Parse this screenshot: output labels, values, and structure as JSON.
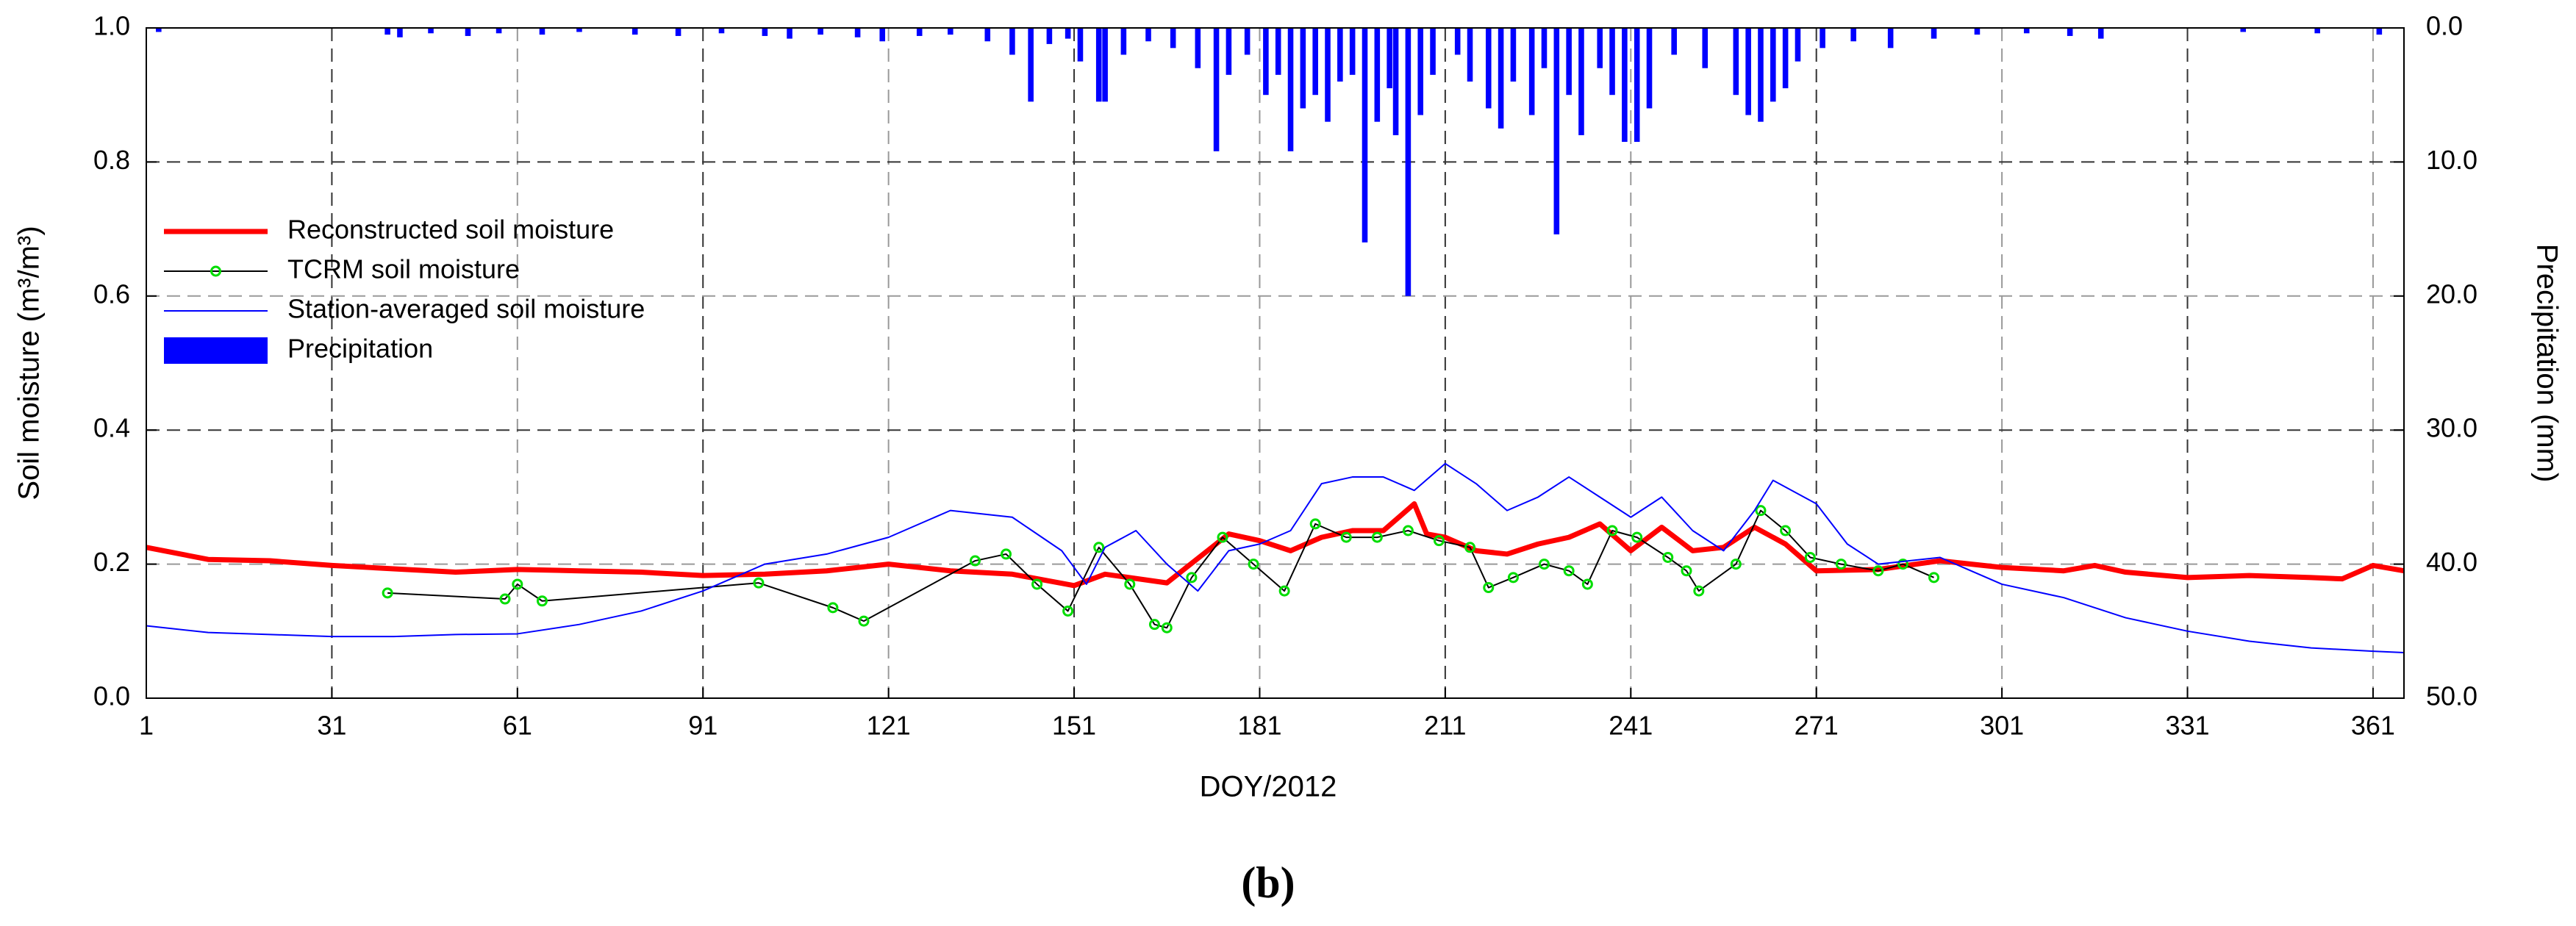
{
  "chart_data": {
    "type": "combo",
    "xlabel": "DOY/2012",
    "ylabel": "Soil moisture (m³/m³)",
    "y2label": "Precipitation (mm)",
    "caption": "(b)",
    "xlim": [
      1,
      366
    ],
    "xticks": [
      1,
      31,
      61,
      91,
      121,
      151,
      181,
      211,
      241,
      271,
      301,
      331,
      361
    ],
    "ylim": [
      0,
      1
    ],
    "yticks": [
      {
        "value": 0,
        "label": "0.0"
      },
      {
        "value": 0.2,
        "label": "0.2"
      },
      {
        "value": 0.4,
        "label": "0.4"
      },
      {
        "value": 0.6,
        "label": "0.6"
      },
      {
        "value": 0.8,
        "label": "0.8"
      },
      {
        "value": 1,
        "label": "1.0"
      }
    ],
    "y2lim": [
      50,
      0
    ],
    "y2ticks": [
      {
        "value": 0,
        "label": "0.0"
      },
      {
        "value": 10,
        "label": "10.0"
      },
      {
        "value": 20,
        "label": "20.0"
      },
      {
        "value": 30,
        "label": "30.0"
      },
      {
        "value": 40,
        "label": "40.0"
      },
      {
        "value": 50,
        "label": "50.0"
      }
    ],
    "grid": true,
    "legend": "upper left",
    "series": [
      {
        "name": "Reconstructed soil moisture",
        "type": "line",
        "color": "#ff0000",
        "width": 7,
        "x": [
          1,
          11,
          21,
          31,
          41,
          51,
          61,
          71,
          81,
          91,
          101,
          111,
          121,
          131,
          141,
          151,
          156,
          166,
          176,
          181,
          186,
          191,
          196,
          201,
          206,
          208,
          211,
          216,
          221,
          226,
          231,
          236,
          241,
          246,
          251,
          256,
          261,
          266,
          271,
          281,
          291,
          301,
          311,
          316,
          321,
          331,
          341,
          351,
          356,
          361,
          366
        ],
        "values": [
          0.225,
          0.207,
          0.205,
          0.198,
          0.193,
          0.188,
          0.192,
          0.19,
          0.188,
          0.183,
          0.185,
          0.19,
          0.2,
          0.19,
          0.185,
          0.168,
          0.185,
          0.172,
          0.245,
          0.235,
          0.22,
          0.24,
          0.25,
          0.25,
          0.29,
          0.245,
          0.24,
          0.22,
          0.215,
          0.23,
          0.24,
          0.26,
          0.22,
          0.255,
          0.22,
          0.225,
          0.255,
          0.23,
          0.19,
          0.192,
          0.205,
          0.195,
          0.19,
          0.198,
          0.188,
          0.18,
          0.183,
          0.18,
          0.178,
          0.198,
          0.19
        ]
      },
      {
        "name": "TCRM soil moisture",
        "type": "line",
        "color": "#000000",
        "width": 2,
        "marker": "circle",
        "marker_color": "#00dd00",
        "x": [
          40,
          59,
          61,
          65,
          100,
          112,
          117,
          135,
          140,
          145,
          150,
          155,
          160,
          164,
          166,
          170,
          175,
          180,
          185,
          190,
          195,
          200,
          205,
          210,
          215,
          218,
          222,
          227,
          231,
          234,
          238,
          242,
          247,
          250,
          252,
          258,
          262,
          266,
          270,
          275,
          281,
          285,
          290
        ],
        "values": [
          0.157,
          0.148,
          0.17,
          0.145,
          0.172,
          0.135,
          0.115,
          0.205,
          0.215,
          0.17,
          0.13,
          0.225,
          0.17,
          0.11,
          0.105,
          0.18,
          0.24,
          0.2,
          0.16,
          0.26,
          0.24,
          0.24,
          0.25,
          0.235,
          0.225,
          0.165,
          0.18,
          0.2,
          0.19,
          0.17,
          0.25,
          0.24,
          0.21,
          0.19,
          0.16,
          0.2,
          0.28,
          0.25,
          0.21,
          0.2,
          0.19,
          0.2,
          0.18
        ]
      },
      {
        "name": "Station-averaged soil moisture",
        "type": "line",
        "color": "#0000ff",
        "width": 2,
        "x": [
          1,
          11,
          21,
          31,
          41,
          51,
          61,
          71,
          81,
          91,
          101,
          111,
          121,
          131,
          141,
          149,
          153,
          156,
          161,
          166,
          171,
          176,
          181,
          186,
          191,
          196,
          201,
          206,
          211,
          216,
          221,
          226,
          231,
          236,
          241,
          246,
          251,
          256,
          261,
          264,
          271,
          276,
          281,
          291,
          301,
          311,
          321,
          331,
          341,
          351,
          361,
          366
        ],
        "values": [
          0.108,
          0.098,
          0.095,
          0.092,
          0.092,
          0.095,
          0.096,
          0.11,
          0.13,
          0.16,
          0.2,
          0.215,
          0.24,
          0.28,
          0.27,
          0.22,
          0.17,
          0.225,
          0.25,
          0.2,
          0.16,
          0.22,
          0.23,
          0.25,
          0.32,
          0.33,
          0.33,
          0.31,
          0.35,
          0.32,
          0.28,
          0.3,
          0.33,
          0.3,
          0.27,
          0.3,
          0.25,
          0.22,
          0.28,
          0.325,
          0.29,
          0.23,
          0.2,
          0.21,
          0.17,
          0.15,
          0.12,
          0.1,
          0.085,
          0.075,
          0.07,
          0.068
        ]
      },
      {
        "name": "Precipitation",
        "type": "bar",
        "axis": "y2",
        "color": "#0000ff",
        "x": [
          3,
          40,
          42,
          47,
          53,
          58,
          65,
          71,
          80,
          87,
          94,
          101,
          105,
          110,
          116,
          120,
          126,
          131,
          137,
          141,
          144,
          147,
          150,
          152,
          155,
          156,
          159,
          163,
          167,
          171,
          174,
          176,
          179,
          182,
          184,
          186,
          188,
          190,
          192,
          194,
          196,
          198,
          200,
          202,
          203,
          205,
          207,
          209,
          213,
          215,
          218,
          220,
          222,
          225,
          227,
          229,
          231,
          233,
          236,
          238,
          240,
          242,
          244,
          248,
          253,
          258,
          260,
          262,
          264,
          266,
          268,
          272,
          277,
          283,
          290,
          297,
          305,
          312,
          317,
          340,
          352,
          362
        ],
        "values": [
          0.3,
          0.5,
          0.7,
          0.4,
          0.6,
          0.4,
          0.5,
          0.3,
          0.5,
          0.6,
          0.4,
          0.6,
          0.8,
          0.5,
          0.7,
          1.0,
          0.6,
          0.5,
          1.0,
          2.0,
          5.5,
          1.2,
          0.8,
          2.5,
          5.5,
          5.5,
          2.0,
          1.0,
          1.5,
          3.0,
          9.2,
          3.5,
          2.0,
          5.0,
          3.5,
          9.2,
          6.0,
          5.0,
          7.0,
          4.0,
          3.5,
          16.0,
          7.0,
          4.5,
          8.0,
          20.0,
          6.5,
          3.5,
          2.0,
          4.0,
          6.0,
          7.5,
          4.0,
          6.5,
          3.0,
          15.4,
          5.0,
          8.0,
          3.0,
          5.0,
          8.5,
          8.5,
          6.0,
          2.0,
          3.0,
          5.0,
          6.5,
          7.0,
          5.5,
          4.5,
          2.5,
          1.5,
          1.0,
          1.5,
          0.8,
          0.5,
          0.4,
          0.6,
          0.8,
          0.3,
          0.4,
          0.5
        ]
      }
    ]
  }
}
